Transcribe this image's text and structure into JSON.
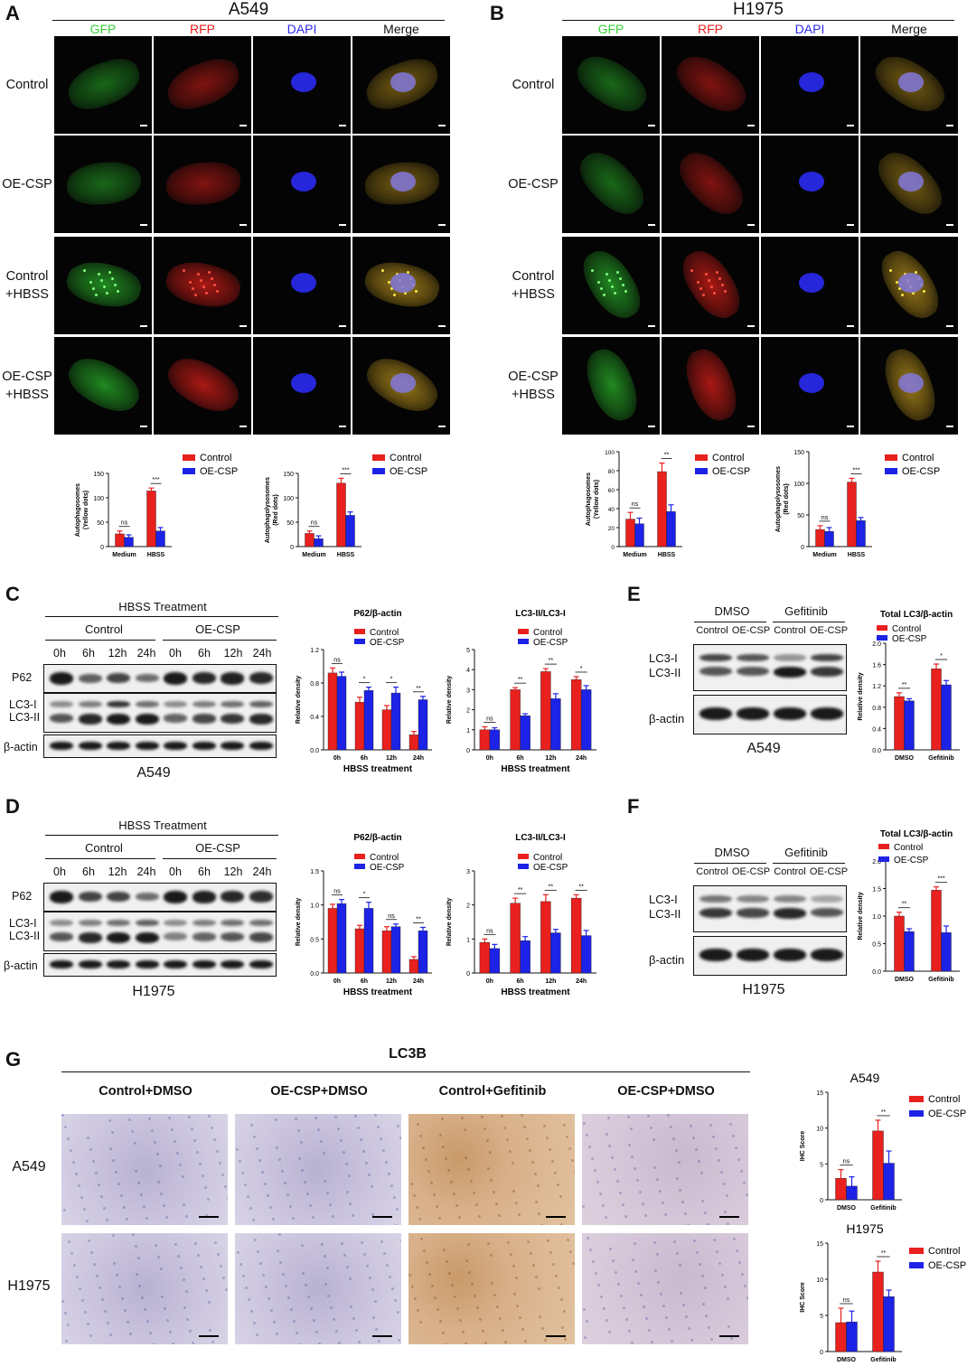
{
  "panels": {
    "A": "A",
    "B": "B",
    "C": "C",
    "D": "D",
    "E": "E",
    "F": "F",
    "G": "G"
  },
  "A": {
    "cell": "A549",
    "channels": [
      "GFP",
      "RFP",
      "DAPI",
      "Merge"
    ],
    "rows": [
      "Control",
      "OE-CSP",
      "Control\n+HBSS",
      "OE-CSP\n+HBSS"
    ]
  },
  "B": {
    "cell": "H1975",
    "channels": [
      "GFP",
      "RFP",
      "DAPI",
      "Merge"
    ],
    "rows": [
      "Control",
      "OE-CSP",
      "Control\n+HBSS",
      "OE-CSP\n+HBSS"
    ]
  },
  "colors": {
    "control": "#e8201e",
    "oecsp": "#1c22e6",
    "gfp": "#34d134",
    "rfp": "#e8201e",
    "dapi": "#2a2ae8",
    "merge": "#c9a030"
  },
  "C": {
    "header": "HBSS Treatment",
    "groups": [
      "Control",
      "OE-CSP"
    ],
    "times": [
      "0h",
      "6h",
      "12h",
      "24h",
      "0h",
      "6h",
      "12h",
      "24h"
    ],
    "labels": [
      "P62",
      "LC3-I",
      "LC3-II",
      "β-actin"
    ],
    "cell": "A549"
  },
  "D": {
    "header": "HBSS Treatment",
    "groups": [
      "Control",
      "OE-CSP"
    ],
    "times": [
      "0h",
      "6h",
      "12h",
      "24h",
      "0h",
      "6h",
      "12h",
      "24h"
    ],
    "labels": [
      "P62",
      "LC3-I",
      "LC3-II",
      "β-actin"
    ],
    "cell": "H1975"
  },
  "E": {
    "groups": [
      "DMSO",
      "Gefitinib"
    ],
    "lanes": [
      "Control",
      "OE-CSP",
      "Control",
      "OE-CSP"
    ],
    "labels": [
      "LC3-I",
      "LC3-II",
      "β-actin"
    ],
    "cell": "A549"
  },
  "F": {
    "groups": [
      "DMSO",
      "Gefitinib"
    ],
    "lanes": [
      "Control",
      "OE-CSP",
      "Control",
      "OE-CSP"
    ],
    "labels": [
      "LC3-I",
      "LC3-II",
      "β-actin"
    ],
    "cell": "H1975"
  },
  "G": {
    "title": "LC3B",
    "columns": [
      "Control+DMSO",
      "OE-CSP+DMSO",
      "Control+Gefitinib",
      "OE-CSP+DMSO"
    ],
    "rows": [
      "A549",
      "H1975"
    ]
  },
  "chart_data": [
    {
      "id": "A1",
      "type": "bar",
      "categories": [
        "Medium",
        "HBSS"
      ],
      "ylabel": "Autophagosomes\n(Yellow dots)",
      "ylim": [
        0,
        150
      ],
      "yticks": [
        0,
        50,
        100,
        150
      ],
      "series": [
        {
          "name": "Control",
          "values": [
            26,
            114
          ],
          "err": [
            6,
            6
          ]
        },
        {
          "name": "OE-CSP",
          "values": [
            19,
            32
          ],
          "err": [
            5,
            7
          ]
        }
      ],
      "sig": [
        "ns",
        "***"
      ],
      "legend": "top-right"
    },
    {
      "id": "A2",
      "type": "bar",
      "categories": [
        "Medium",
        "HBSS"
      ],
      "ylabel": "Autophagolysosomes\n(Red dots)",
      "ylim": [
        0,
        150
      ],
      "yticks": [
        0,
        50,
        100,
        150
      ],
      "series": [
        {
          "name": "Control",
          "values": [
            27,
            130
          ],
          "err": [
            5,
            10
          ]
        },
        {
          "name": "OE-CSP",
          "values": [
            16,
            64
          ],
          "err": [
            6,
            7
          ]
        }
      ],
      "sig": [
        "ns",
        "***"
      ],
      "legend": "top-right"
    },
    {
      "id": "B1",
      "type": "bar",
      "categories": [
        "Medium",
        "HBSS"
      ],
      "ylabel": "Autophagosomes\n(Yellow dots)",
      "ylim": [
        0,
        100
      ],
      "yticks": [
        0,
        20,
        40,
        60,
        80,
        100
      ],
      "series": [
        {
          "name": "Control",
          "values": [
            29,
            79
          ],
          "err": [
            7,
            9
          ]
        },
        {
          "name": "OE-CSP",
          "values": [
            24,
            37
          ],
          "err": [
            6,
            7
          ]
        }
      ],
      "sig": [
        "ns",
        "**"
      ],
      "legend": "top-right"
    },
    {
      "id": "B2",
      "type": "bar",
      "categories": [
        "Medium",
        "HBSS"
      ],
      "ylabel": "Autophagolysosomes\n(Red dots)",
      "ylim": [
        0,
        150
      ],
      "yticks": [
        0,
        50,
        100,
        150
      ],
      "series": [
        {
          "name": "Control",
          "values": [
            27,
            102
          ],
          "err": [
            6,
            6
          ]
        },
        {
          "name": "OE-CSP",
          "values": [
            24,
            41
          ],
          "err": [
            6,
            5
          ]
        }
      ],
      "sig": [
        "ns",
        "***"
      ],
      "legend": "top-right"
    },
    {
      "id": "C1",
      "type": "bar",
      "title": "P62/β-actin",
      "xlabel": "HBSS treatment",
      "ylabel": "Relative density",
      "categories": [
        "0h",
        "6h",
        "12h",
        "24h"
      ],
      "ylim": [
        0,
        1.2
      ],
      "yticks": [
        0.0,
        0.4,
        0.8,
        1.2
      ],
      "series": [
        {
          "name": "Control",
          "values": [
            0.92,
            0.57,
            0.48,
            0.18
          ],
          "err": [
            0.06,
            0.06,
            0.05,
            0.04
          ]
        },
        {
          "name": "OE-CSP",
          "values": [
            0.88,
            0.71,
            0.68,
            0.6
          ],
          "err": [
            0.05,
            0.04,
            0.07,
            0.04
          ]
        }
      ],
      "sig": [
        "ns",
        "*",
        "*",
        "**"
      ],
      "legend": "top"
    },
    {
      "id": "C2",
      "type": "bar",
      "title": "LC3-II/LC3-I",
      "xlabel": "HBSS treatment",
      "ylabel": "Relative density",
      "categories": [
        "0h",
        "6h",
        "12h",
        "24h"
      ],
      "ylim": [
        0,
        5
      ],
      "yticks": [
        0,
        1,
        2,
        3,
        4,
        5
      ],
      "series": [
        {
          "name": "Control",
          "values": [
            1.0,
            3.0,
            3.9,
            3.5
          ],
          "err": [
            0.15,
            0.1,
            0.15,
            0.15
          ]
        },
        {
          "name": "OE-CSP",
          "values": [
            1.0,
            1.7,
            2.55,
            3.0
          ],
          "err": [
            0.1,
            0.1,
            0.25,
            0.2
          ]
        }
      ],
      "sig": [
        "ns",
        "**",
        "**",
        "*"
      ],
      "legend": "top"
    },
    {
      "id": "D1",
      "type": "bar",
      "title": "P62/β-actin",
      "xlabel": "HBSS treatment",
      "ylabel": "Relative density",
      "categories": [
        "0h",
        "6h",
        "12h",
        "24h"
      ],
      "ylim": [
        0,
        1.5
      ],
      "yticks": [
        0.0,
        0.5,
        1.0,
        1.5
      ],
      "series": [
        {
          "name": "Control",
          "values": [
            0.95,
            0.65,
            0.62,
            0.2
          ],
          "err": [
            0.06,
            0.05,
            0.06,
            0.04
          ]
        },
        {
          "name": "OE-CSP",
          "values": [
            1.02,
            0.95,
            0.68,
            0.62
          ],
          "err": [
            0.06,
            0.09,
            0.04,
            0.05
          ]
        }
      ],
      "sig": [
        "ns",
        "*",
        "ns",
        "**"
      ],
      "legend": "top"
    },
    {
      "id": "D2",
      "type": "bar",
      "title": "LC3-II/LC3-I",
      "xlabel": "HBSS treatment",
      "ylabel": "Relative density",
      "categories": [
        "0h",
        "6h",
        "12h",
        "24h"
      ],
      "ylim": [
        0,
        3
      ],
      "yticks": [
        0,
        1,
        2,
        3
      ],
      "series": [
        {
          "name": "Control",
          "values": [
            0.9,
            2.05,
            2.1,
            2.2
          ],
          "err": [
            0.1,
            0.15,
            0.2,
            0.1
          ]
        },
        {
          "name": "OE-CSP",
          "values": [
            0.72,
            0.95,
            1.18,
            1.1
          ],
          "err": [
            0.12,
            0.12,
            0.1,
            0.15
          ]
        }
      ],
      "sig": [
        "ns",
        "**",
        "**",
        "**"
      ],
      "legend": "top"
    },
    {
      "id": "E1",
      "type": "bar",
      "title": "Total LC3/β-actin",
      "ylabel": "Relative density",
      "categories": [
        "DMSO",
        "Gefitinib"
      ],
      "ylim": [
        0,
        2.0
      ],
      "yticks": [
        0.0,
        0.4,
        0.8,
        1.2,
        1.6,
        2.0
      ],
      "series": [
        {
          "name": "Control",
          "values": [
            1.0,
            1.52
          ],
          "err": [
            0.07,
            0.09
          ]
        },
        {
          "name": "OE-CSP",
          "values": [
            0.92,
            1.22
          ],
          "err": [
            0.04,
            0.08
          ]
        }
      ],
      "sig": [
        "**",
        "*"
      ],
      "legend": "top"
    },
    {
      "id": "F1",
      "type": "bar",
      "title": "Total LC3/β-actin",
      "ylabel": "Relative density",
      "categories": [
        "DMSO",
        "Gefitinib"
      ],
      "ylim": [
        0,
        2.0
      ],
      "yticks": [
        0.0,
        0.5,
        1.0,
        1.5,
        2.0
      ],
      "series": [
        {
          "name": "Control",
          "values": [
            1.0,
            1.47
          ],
          "err": [
            0.07,
            0.06
          ]
        },
        {
          "name": "OE-CSP",
          "values": [
            0.72,
            0.7
          ],
          "err": [
            0.05,
            0.12
          ]
        }
      ],
      "sig": [
        "**",
        "***"
      ],
      "legend": "top"
    },
    {
      "id": "G1",
      "type": "bar",
      "title": "A549",
      "ylabel": "IHC Score",
      "categories": [
        "DMSO",
        "Gefitinib"
      ],
      "ylim": [
        0,
        15
      ],
      "yticks": [
        0,
        5,
        10,
        15
      ],
      "series": [
        {
          "name": "Control",
          "values": [
            3.0,
            9.6
          ],
          "err": [
            1.2,
            1.5
          ]
        },
        {
          "name": "OE-CSP",
          "values": [
            1.9,
            5.1
          ],
          "err": [
            1.3,
            1.7
          ]
        }
      ],
      "sig": [
        "ns",
        "**"
      ],
      "legend": "right"
    },
    {
      "id": "G2",
      "type": "bar",
      "title": "H1975",
      "ylabel": "IHC Score",
      "categories": [
        "DMSO",
        "Gefitinib"
      ],
      "ylim": [
        0,
        15
      ],
      "yticks": [
        0,
        5,
        10,
        15
      ],
      "series": [
        {
          "name": "Control",
          "values": [
            4.0,
            11.0
          ],
          "err": [
            2.0,
            1.5
          ]
        },
        {
          "name": "OE-CSP",
          "values": [
            4.1,
            7.6
          ],
          "err": [
            1.5,
            0.9
          ]
        }
      ],
      "sig": [
        "ns",
        "**"
      ],
      "legend": "right"
    }
  ]
}
